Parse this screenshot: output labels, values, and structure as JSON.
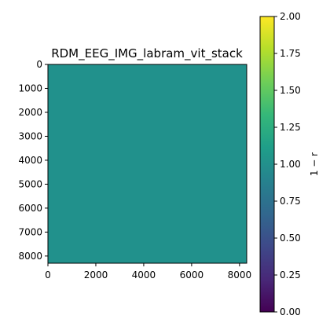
{
  "chart_data": {
    "type": "heatmap",
    "title": "RDM_EEG_IMG_labram_vit_stack",
    "xlabel": "",
    "ylabel": "",
    "matrix_size": 8300,
    "xlim": [
      0,
      8300
    ],
    "ylim": [
      8300,
      0
    ],
    "x_ticks": [
      0,
      2000,
      4000,
      6000,
      8000
    ],
    "y_ticks": [
      0,
      1000,
      2000,
      3000,
      4000,
      5000,
      6000,
      7000,
      8000
    ],
    "cell_value": 1.0,
    "colorbar": {
      "label": "1 − r",
      "range": [
        0.0,
        2.0
      ],
      "ticks": [
        "0.00",
        "0.25",
        "0.50",
        "0.75",
        "1.00",
        "1.25",
        "1.50",
        "1.75",
        "2.00"
      ],
      "colormap": "viridis"
    },
    "grid": false
  },
  "colors": {
    "heatmap_fill": "#21918c",
    "viridis_stops": [
      "#440154",
      "#482878",
      "#3e4989",
      "#31688e",
      "#26828e",
      "#1f9e89",
      "#35b779",
      "#6ece58",
      "#b5de2b",
      "#fde725"
    ]
  }
}
